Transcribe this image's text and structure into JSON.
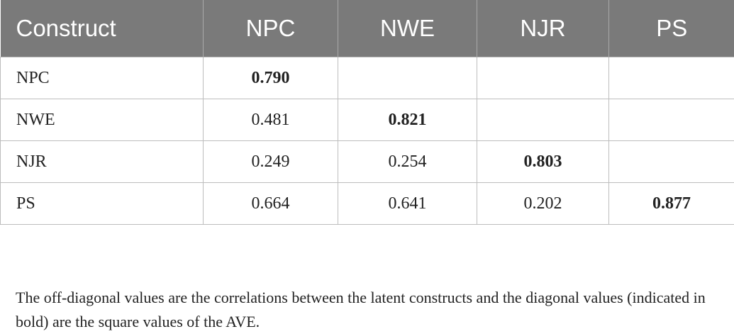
{
  "table": {
    "headers": [
      "Construct",
      "NPC",
      "NWE",
      "NJR",
      "PS"
    ],
    "rows": [
      {
        "construct": "NPC",
        "cells": [
          "0.790",
          "",
          "",
          ""
        ]
      },
      {
        "construct": "NWE",
        "cells": [
          "0.481",
          "0.821",
          "",
          ""
        ]
      },
      {
        "construct": "NJR",
        "cells": [
          "0.249",
          "0.254",
          "0.803",
          ""
        ]
      },
      {
        "construct": "PS",
        "cells": [
          "0.664",
          "0.641",
          "0.202",
          "0.877"
        ]
      }
    ]
  },
  "footnote": "The off-diagonal values are the correlations between the latent constructs and the diagonal values (indicated in bold) are the square values of the AVE."
}
